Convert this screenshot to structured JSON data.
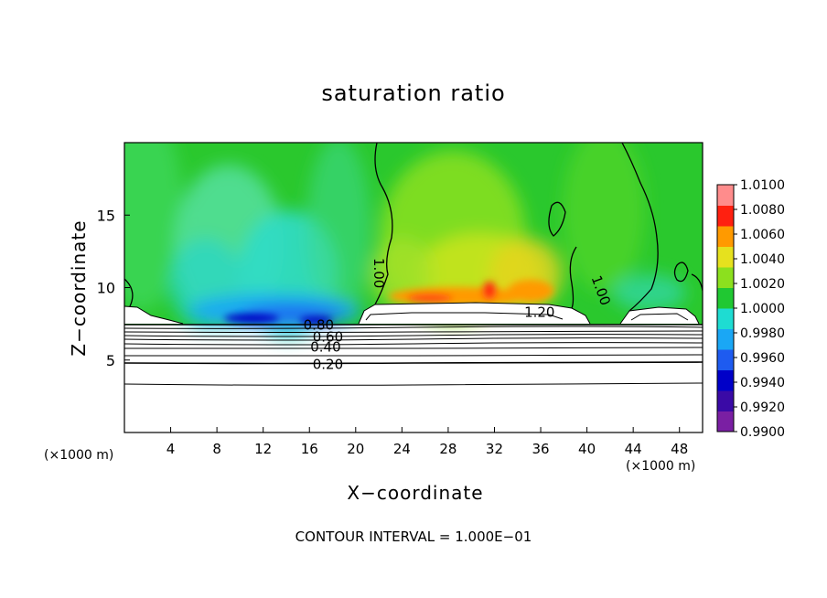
{
  "chart_data": {
    "type": "heatmap",
    "title": "saturation ratio",
    "xlabel": "X−coordinate",
    "ylabel": "Z−coordinate",
    "x_unit": "(×1000 m)",
    "xlim": [
      0,
      50
    ],
    "ylim": [
      0,
      20
    ],
    "x_ticks": [
      4,
      8,
      12,
      16,
      20,
      24,
      28,
      32,
      36,
      40,
      44,
      48
    ],
    "y_ticks": [
      5,
      10,
      15
    ],
    "footnote": "CONTOUR INTERVAL = 1.000E−01",
    "colorbar": {
      "range": [
        0.99,
        1.01
      ],
      "tick_labels": [
        "1.0100",
        "1.0080",
        "1.0060",
        "1.0040",
        "1.0020",
        "1.0000",
        "0.9980",
        "0.9960",
        "0.9940",
        "0.9920",
        "0.9900"
      ],
      "colors": [
        "#7a1fa3",
        "#3a0aa6",
        "#0000c8",
        "#1e5bf0",
        "#1aa7f5",
        "#1edcd2",
        "#20c832",
        "#8ce01e",
        "#e6e11e",
        "#ff9a00",
        "#ff2010",
        "#ff8c8c"
      ]
    },
    "contour_labels": [
      {
        "text": "0.20",
        "x": 17.6,
        "z": 4.7
      },
      {
        "text": "0.40",
        "x": 17.4,
        "z": 5.9
      },
      {
        "text": "0.60",
        "x": 17.6,
        "z": 6.6
      },
      {
        "text": "0.80",
        "x": 16.8,
        "z": 7.4
      },
      {
        "text": "1.00",
        "x": 22.0,
        "z": 11.0
      },
      {
        "text": "1.00",
        "x": 41.2,
        "z": 9.8
      },
      {
        "text": "1.20",
        "x": 35.9,
        "z": 8.3
      }
    ]
  }
}
